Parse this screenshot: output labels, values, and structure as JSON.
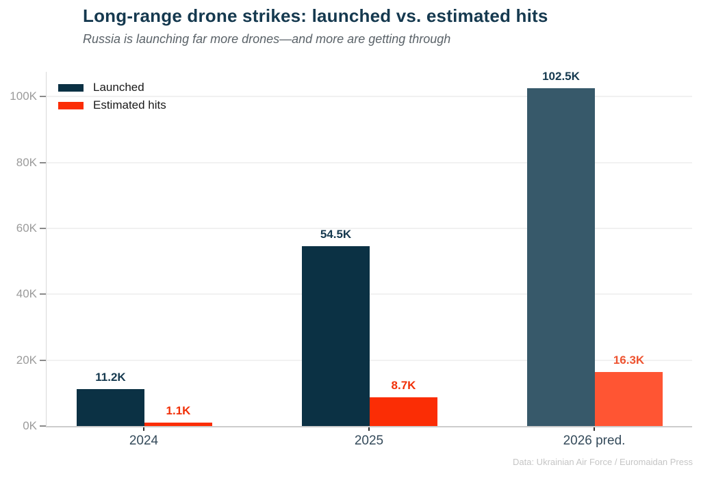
{
  "header": {
    "title": "Long-range drone strikes: launched vs. estimated hits",
    "subtitle": "Russia is launching far more drones—and more are getting through"
  },
  "chart_data": {
    "type": "bar",
    "title": "Long-range drone strikes: launched vs. estimated hits",
    "subtitle": "Russia is launching far more drones—and more are getting through",
    "categories": [
      "2024",
      "2025",
      "2026 pred."
    ],
    "series": [
      {
        "name": "Launched",
        "values": [
          11.2,
          54.5,
          102.5
        ],
        "labels": [
          "11.2K",
          "54.5K",
          "102.5K"
        ],
        "bar_colors": [
          "#0b3144",
          "#0b3144",
          "#37596a"
        ],
        "label_colors": [
          "#15394f",
          "#15394f",
          "#15394f"
        ],
        "legend_color": "#0b3144"
      },
      {
        "name": "Estimated hits",
        "values": [
          1.1,
          8.7,
          16.3
        ],
        "labels": [
          "1.1K",
          "8.7K",
          "16.3K"
        ],
        "bar_colors": [
          "#fb2d05",
          "#fb2d05",
          "#ff5533"
        ],
        "label_colors": [
          "#f13008",
          "#f13008",
          "#ee5330"
        ],
        "legend_color": "#fb2d05"
      }
    ],
    "yticks": {
      "values": [
        0,
        20,
        40,
        60,
        80,
        100
      ],
      "labels": [
        "0K",
        "20K",
        "40K",
        "60K",
        "80K",
        "100K"
      ]
    },
    "ylim": [
      0,
      107.5
    ],
    "value_unit": "K (thousands)",
    "grid": true,
    "legend_position": "top-left",
    "note": "2026 pred. bars shown in lighter shades (predicted values)"
  },
  "footer": {
    "source": "Data: Ukrainian Air Force / Euromaidan Press"
  }
}
